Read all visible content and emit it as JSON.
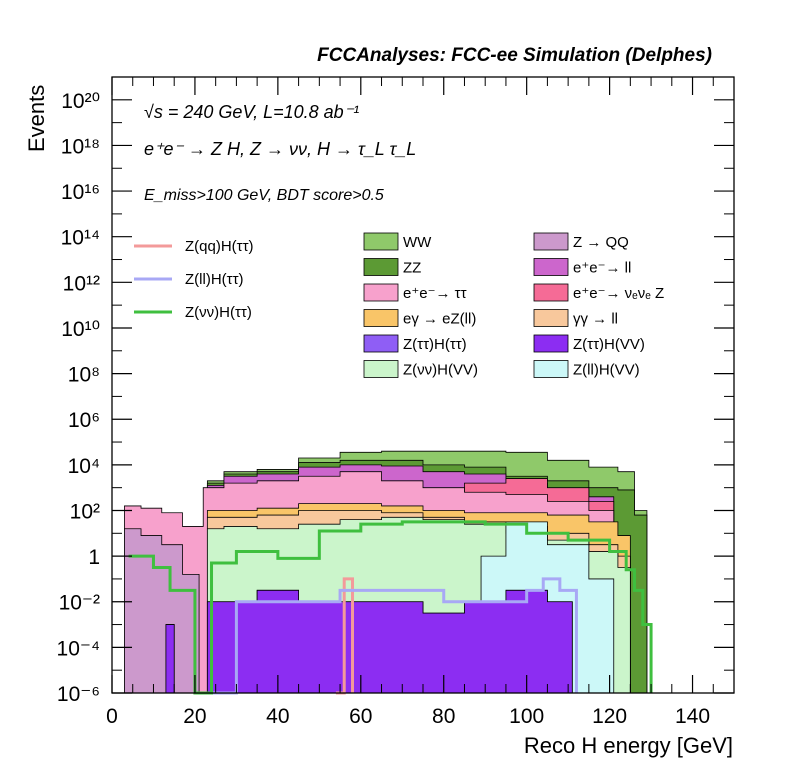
{
  "chart_data": {
    "type": "area",
    "title": "FCCAnalyses: FCC-ee Simulation (Delphes)",
    "annotations": {
      "line1": "√s = 240 GeV, L=10.8 ab⁻¹",
      "line2": "e⁺e⁻ → Z H, Z → νν, H → τ_L τ_L",
      "line3": "E_miss>100 GeV, BDT score>0.5"
    },
    "xlabel": "Reco H energy [GeV]",
    "ylabel": "Events",
    "xlim": [
      0,
      150
    ],
    "ylim_log10": [
      -6,
      21
    ],
    "log_y": true,
    "x_ticks": [
      "0",
      "20",
      "40",
      "60",
      "80",
      "100",
      "120",
      "140"
    ],
    "y_ticks": [
      "10⁻⁶",
      "10⁻⁴",
      "10⁻²",
      "1",
      "10²",
      "10⁴",
      "10⁶",
      "10⁸",
      "10¹⁰",
      "10¹²",
      "10¹⁴",
      "10¹⁶",
      "10¹⁸",
      "10²⁰"
    ],
    "stack_total_log10_profile": {
      "note": "approximate outer envelope read from the chart, log10(events)",
      "x": [
        4,
        10,
        14,
        20,
        24,
        30,
        40,
        50,
        60,
        70,
        80,
        90,
        100,
        110,
        120,
        124,
        128,
        130
      ],
      "y": [
        2.2,
        2.1,
        1.9,
        1.3,
        3.5,
        3.7,
        3.8,
        4.3,
        4.55,
        4.6,
        4.6,
        4.6,
        4.55,
        4.2,
        3.9,
        3.7,
        2.0,
        1.0
      ]
    },
    "stack_layers": [
      {
        "name": "WW",
        "color": "#8fc96a",
        "top_log10": [
          null,
          null,
          null,
          null,
          3.3,
          3.7,
          3.8,
          4.3,
          4.55,
          4.6,
          4.6,
          4.6,
          4.55,
          4.2,
          3.9,
          3.7,
          2.0,
          null
        ]
      },
      {
        "name": "ZZ",
        "color": "#5c9a34",
        "top_log10": [
          null,
          null,
          null,
          null,
          3.2,
          3.6,
          3.7,
          4.1,
          4.2,
          4.2,
          4.0,
          3.9,
          3.5,
          3.3,
          3.0,
          2.9,
          1.8,
          null
        ]
      },
      {
        "name": "e⁺e⁻→ ll",
        "color": "#cc66cc",
        "top_log10": [
          null,
          null,
          null,
          null,
          3.1,
          3.5,
          3.6,
          3.9,
          4.0,
          3.95,
          3.7,
          3.6,
          3.2,
          2.9,
          2.6,
          null,
          null,
          null
        ]
      },
      {
        "name": "e⁺e⁻→ νₑνₑ Z",
        "color": "#f56b96",
        "top_log10": [
          null,
          null,
          null,
          null,
          null,
          null,
          null,
          null,
          null,
          null,
          2.6,
          3.2,
          3.4,
          3.0,
          2.4,
          null,
          null,
          null
        ]
      },
      {
        "name": "e⁺e⁻→ ττ",
        "color": "#f7a1cc",
        "top_log10": [
          2.2,
          2.1,
          1.9,
          1.3,
          3.0,
          3.2,
          3.3,
          3.5,
          3.7,
          3.3,
          3.0,
          2.8,
          2.7,
          2.4,
          2.0,
          null,
          null,
          null
        ]
      },
      {
        "name": "eγ → eZ(ll)",
        "color": "#f9c568",
        "top_log10": [
          null,
          null,
          null,
          null,
          2.0,
          2.0,
          2.1,
          2.3,
          2.3,
          2.2,
          2.0,
          1.9,
          1.9,
          1.8,
          1.5,
          0.9,
          null,
          null
        ]
      },
      {
        "name": "γγ → ll",
        "color": "#f8c89c",
        "top_log10": [
          null,
          null,
          null,
          null,
          1.7,
          1.7,
          1.8,
          2.0,
          2.0,
          1.9,
          1.7,
          1.5,
          1.3,
          1.0,
          0.5,
          0.0,
          null,
          null
        ]
      },
      {
        "name": "Z(νν)H(VV)",
        "color": "#cbf5cb",
        "top_log10": [
          null,
          null,
          null,
          null,
          1.2,
          1.3,
          1.2,
          1.4,
          1.6,
          1.7,
          1.6,
          1.4,
          1.0,
          0.7,
          0.2,
          -0.5,
          null,
          null
        ]
      },
      {
        "name": "Z(ll)H(VV)",
        "color": "#ccf8f8",
        "top_log10": [
          null,
          null,
          null,
          null,
          null,
          null,
          null,
          null,
          null,
          null,
          null,
          0.0,
          1.5,
          0.5,
          -1.0,
          null,
          null,
          null
        ]
      },
      {
        "name": "Z → QQ",
        "color": "#cc99cc",
        "top_log10": [
          1.2,
          0.9,
          0.5,
          -0.8,
          null,
          null,
          null,
          null,
          null,
          null,
          null,
          null,
          null,
          null,
          null,
          null,
          null,
          null
        ]
      },
      {
        "name": "Z(ττ)H(ττ)",
        "color": "#8f5ef5",
        "top_log10": [
          null,
          null,
          -3.0,
          null,
          -2.0,
          -2.0,
          -1.5,
          -2.0,
          -2.0,
          -2.0,
          -2.5,
          -2.0,
          -1.5,
          -2.0,
          null,
          null,
          null,
          null
        ]
      },
      {
        "name": "Z(ττ)H(VV)",
        "color": "#8c2df2",
        "top_log10": [
          null,
          null,
          -3.0,
          null,
          -2.0,
          -2.0,
          -1.5,
          -2.0,
          -2.0,
          -2.0,
          -2.5,
          -2.0,
          -1.5,
          -2.0,
          null,
          null,
          null,
          null
        ]
      }
    ],
    "signal_lines": [
      {
        "name": "Z(qq)H(ττ)",
        "color": "#f39a9a",
        "x": [
          54,
          56,
          58
        ],
        "y_log10": [
          -6,
          -1.0,
          -6
        ]
      },
      {
        "name": "Z(ll)H(ττ)",
        "color": "#a8a8f5",
        "x": [
          24,
          30,
          50,
          55,
          60,
          80,
          100,
          104,
          108,
          112
        ],
        "y_log10": [
          -6,
          -2.0,
          -2.0,
          -1.5,
          -1.5,
          -2.0,
          -1.5,
          -1.0,
          -1.5,
          -6
        ]
      },
      {
        "name": "Z(νν)H(ττ)",
        "color": "#3fbf3f",
        "x": [
          4,
          10,
          14,
          20,
          24,
          30,
          40,
          50,
          60,
          70,
          80,
          90,
          100,
          110,
          120,
          124,
          126,
          128,
          130
        ],
        "y_log10": [
          0.0,
          -0.5,
          -1.5,
          -6,
          -0.3,
          0.2,
          -0.1,
          1.1,
          1.4,
          1.5,
          1.5,
          1.4,
          1.0,
          0.7,
          0.2,
          -0.6,
          -1.5,
          -3.0,
          -6
        ]
      }
    ],
    "legend": {
      "lines": [
        "Z(qq)H(ττ)",
        "Z(ll)H(ττ)",
        "Z(νν)H(ττ)"
      ],
      "fills_left": [
        "WW",
        "ZZ",
        "e⁺e⁻→ ττ",
        "eγ → eZ(ll)",
        "Z(ττ)H(ττ)",
        "Z(νν)H(VV)"
      ],
      "fills_right": [
        "Z → QQ",
        "e⁺e⁻→ ll",
        "e⁺e⁻→ νₑνₑ Z",
        "γγ → ll",
        "Z(ττ)H(VV)",
        "Z(ll)H(VV)"
      ]
    }
  }
}
